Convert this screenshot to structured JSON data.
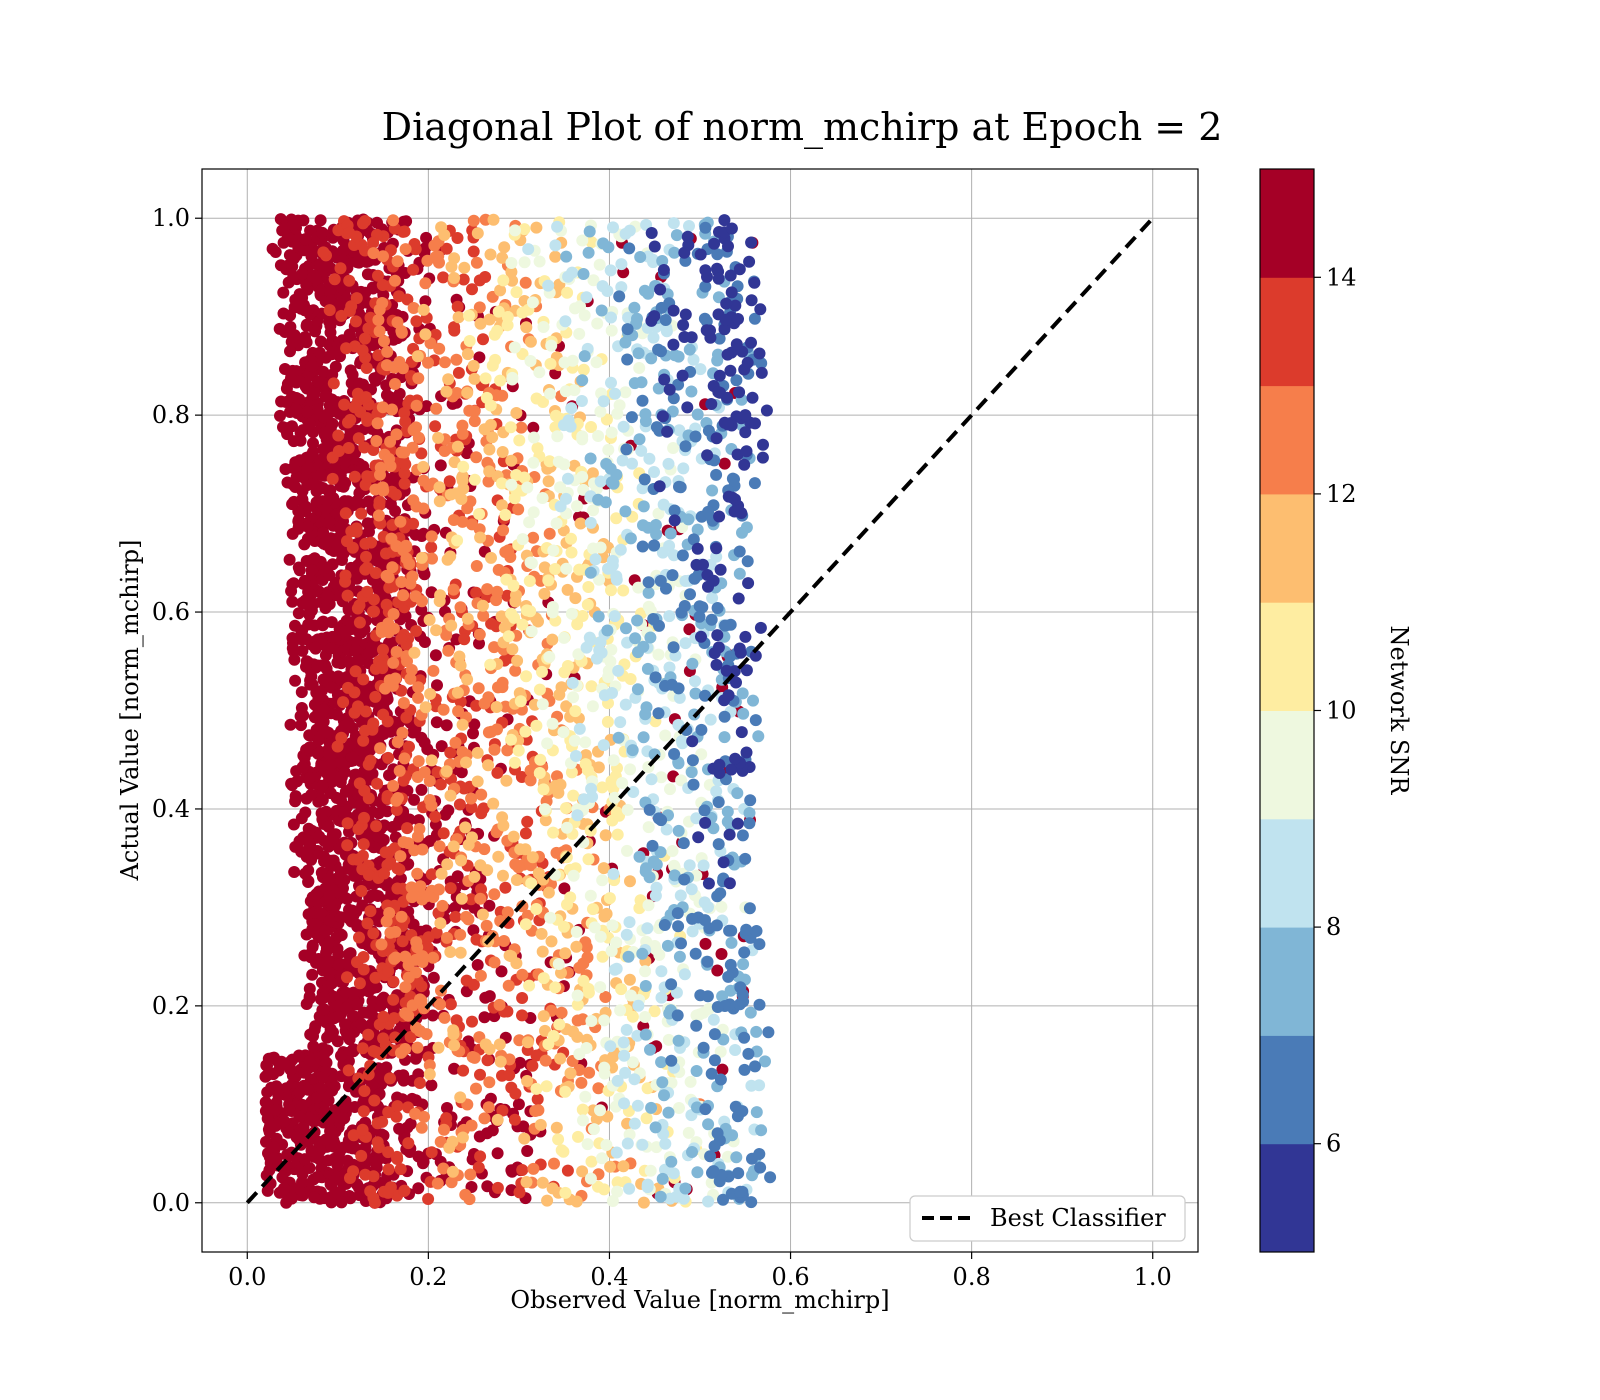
{
  "chart_data": {
    "type": "scatter",
    "title": "Diagonal Plot of norm_mchirp at Epoch = 2",
    "xlabel": "Observed Value [norm_mchirp]",
    "ylabel": "Actual Value [norm_mchirp]",
    "xlim": [
      -0.05,
      1.05
    ],
    "ylim": [
      -0.05,
      1.05
    ],
    "xticks": [
      "0.0",
      "0.2",
      "0.4",
      "0.6",
      "0.8",
      "1.0"
    ],
    "yticks": [
      "0.0",
      "0.2",
      "0.4",
      "0.6",
      "0.8",
      "1.0"
    ],
    "grid": true,
    "legend": {
      "placement": "lower right",
      "entries": [
        "Best Classifier"
      ]
    },
    "reference_line": {
      "name": "Best Classifier",
      "x": [
        0,
        1
      ],
      "y": [
        0,
        1
      ],
      "style": "dashed",
      "color": "#000000"
    },
    "colorbar": {
      "label": "Network SNR",
      "range": [
        5,
        15
      ],
      "ticks": [
        "6",
        "8",
        "10",
        "12",
        "14"
      ],
      "bins": [
        {
          "from": 5,
          "to": 6,
          "color": "#313695"
        },
        {
          "from": 6,
          "to": 7,
          "color": "#4a7bb7"
        },
        {
          "from": 7,
          "to": 8,
          "color": "#80b6d6"
        },
        {
          "from": 8,
          "to": 9,
          "color": "#c0e3ef"
        },
        {
          "from": 9,
          "to": 10,
          "color": "#eef8df"
        },
        {
          "from": 10,
          "to": 11,
          "color": "#feeda1"
        },
        {
          "from": 11,
          "to": 12,
          "color": "#fdbe70"
        },
        {
          "from": 12,
          "to": 13,
          "color": "#f67e4b"
        },
        {
          "from": 13,
          "to": 14,
          "color": "#dc3b2c"
        },
        {
          "from": 14,
          "to": 15,
          "color": "#a50026"
        }
      ]
    },
    "point_cloud": {
      "description": "dense scatter of predictions",
      "x_range": [
        0.0,
        0.6
      ],
      "y_range": [
        0.0,
        1.0
      ],
      "snr_gradient": "high SNR near low observed values, low SNR near observed 0.5-0.6",
      "sample_points": [
        {
          "x": 0.08,
          "y": 0.95,
          "snr": 15
        },
        {
          "x": 0.12,
          "y": 0.6,
          "snr": 15
        },
        {
          "x": 0.1,
          "y": 0.2,
          "snr": 15
        },
        {
          "x": 0.2,
          "y": 0.05,
          "snr": 15
        },
        {
          "x": 0.3,
          "y": 0.1,
          "snr": 14.5
        },
        {
          "x": 0.25,
          "y": 0.85,
          "snr": 11
        },
        {
          "x": 0.35,
          "y": 0.75,
          "snr": 9
        },
        {
          "x": 0.45,
          "y": 0.9,
          "snr": 7.5
        },
        {
          "x": 0.55,
          "y": 0.8,
          "snr": 5.5
        },
        {
          "x": 0.55,
          "y": 0.3,
          "snr": 9
        },
        {
          "x": 0.5,
          "y": 0.1,
          "snr": 12
        },
        {
          "x": 0.4,
          "y": 0.4,
          "snr": 12.5
        }
      ]
    }
  }
}
